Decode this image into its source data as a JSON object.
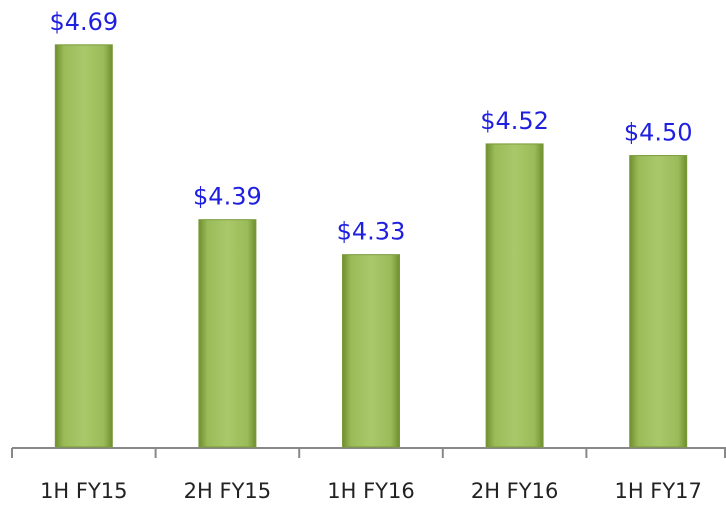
{
  "chart_data": {
    "type": "bar",
    "categories": [
      "1H FY15",
      "2H FY15",
      "1H FY16",
      "2H FY16",
      "1H FY17"
    ],
    "values": [
      4.69,
      4.39,
      4.33,
      4.52,
      4.5
    ],
    "value_labels": [
      "$4.69",
      "$4.39",
      "$4.33",
      "$4.52",
      "$4.50"
    ],
    "color": "#9bbb59",
    "ylim": [
      4.0,
      4.7
    ]
  }
}
